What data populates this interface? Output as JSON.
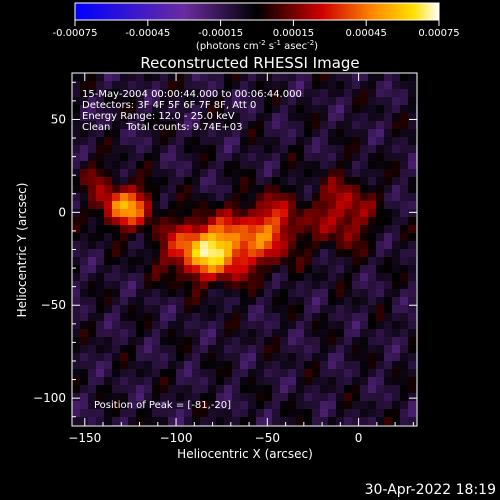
{
  "colorbar": {
    "ticks": [
      -0.00075,
      -0.00045,
      -0.00015,
      0.00015,
      0.00045,
      0.00075
    ],
    "tick_labels": [
      "-0.00075",
      "-0.00045",
      "-0.00015",
      "0.00015",
      "0.00045",
      "0.00075"
    ],
    "unit_prefix": "(photons cm",
    "unit_exp1": "-2",
    "unit_mid": " s",
    "unit_exp2": "-1",
    "unit_mid2": " asec",
    "unit_exp3": "-2",
    "unit_suffix": ")",
    "range": [
      -0.00075,
      0.00075
    ]
  },
  "footer": {
    "timestamp": "30-Apr-2022 18:19"
  },
  "colors": {
    "background": "#000000",
    "foreground": "#ffffff"
  },
  "chart_data": {
    "type": "heatmap",
    "title": "Reconstructed RHESSI Image",
    "xlabel": "Heliocentric X (arcsec)",
    "ylabel": "Heliocentric Y (arcsec)",
    "xlim": [
      -157,
      32
    ],
    "ylim": [
      -115,
      75
    ],
    "xticks": [
      -150,
      -100,
      -50,
      0
    ],
    "yticks": [
      -100,
      -50,
      0,
      50
    ],
    "xtick_labels": [
      "−150",
      "−100",
      "−50",
      "0"
    ],
    "ytick_labels": [
      "−100",
      "−50",
      "0",
      "50"
    ],
    "colormap": "blue-purple-red-yellow-white",
    "info_lines": [
      "15-May-2004 00:00:44.000 to 00:06:44.000",
      "Detectors: 3F 4F 5F 6F 7F 8F, Att 0",
      "Energy Range: 12.0 - 25.0 keV",
      "Clean     Total counts: 9.74E+03"
    ],
    "peak_label": "Position of Peak = [-81,-20]",
    "peak_position": [
      -81,
      -20
    ],
    "sources": [
      {
        "x": -81,
        "y": -20,
        "sigma_x": 16,
        "sigma_y": 11,
        "amplitude": 1.0
      },
      {
        "x": -128,
        "y": 3,
        "sigma_x": 10,
        "sigma_y": 8,
        "amplitude": 0.78
      },
      {
        "x": -48,
        "y": -8,
        "sigma_x": 12,
        "sigma_y": 12,
        "amplitude": 0.55
      },
      {
        "x": -8,
        "y": 0,
        "sigma_x": 11,
        "sigma_y": 13,
        "amplitude": 0.45
      },
      {
        "x": -145,
        "y": 20,
        "sigma_x": 6,
        "sigma_y": 6,
        "amplitude": 0.25
      }
    ]
  }
}
